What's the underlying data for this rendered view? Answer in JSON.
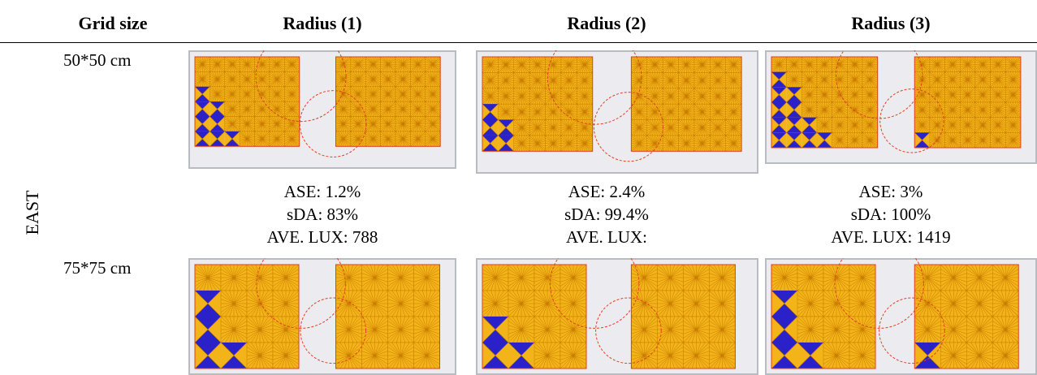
{
  "table": {
    "headers": [
      "Grid size",
      "Radius (1)",
      "Radius (2)",
      "Radius (3)"
    ],
    "orientation": "EAST",
    "rows": [
      {
        "grid": "50*50 cm"
      },
      {
        "grid": "75*75 cm"
      }
    ],
    "metrics": [
      {
        "ase": "ASE: 1.2%",
        "sda": "sDA: 83%",
        "lux": "AVE. LUX: 788"
      },
      {
        "ase": "ASE: 2.4%",
        "sda": "sDA: 99.4%",
        "lux": "AVE. LUX:"
      },
      {
        "ase": "ASE: 3%",
        "sda": "sDA: 100%",
        "lux": "AVE. LUX: 1419"
      }
    ]
  },
  "colors": {
    "pattern_blue": "#2a22c8",
    "pattern_gold": "#f2b419",
    "ray_orange": "#c97a00",
    "circle_red": "#e04020",
    "frame_gray": "#b8bcc0",
    "bg_light": "#ececf0"
  }
}
